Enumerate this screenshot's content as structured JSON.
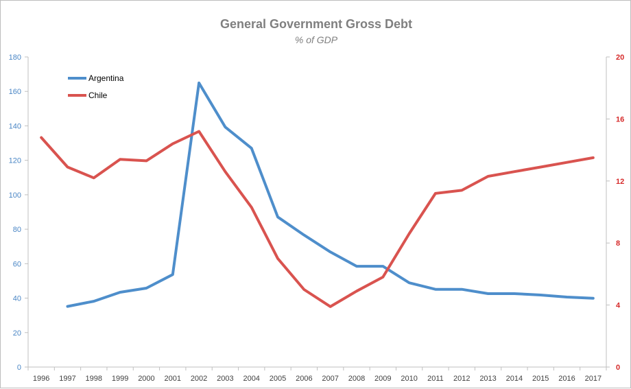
{
  "chart_data": {
    "type": "line",
    "title": "General Government Gross Debt",
    "subtitle": "% of GDP",
    "categories": [
      "1996",
      "1997",
      "1998",
      "1999",
      "2000",
      "2001",
      "2002",
      "2003",
      "2004",
      "2005",
      "2006",
      "2007",
      "2008",
      "2009",
      "2010",
      "2011",
      "2012",
      "2013",
      "2014",
      "2015",
      "2016",
      "2017"
    ],
    "y_left": {
      "ylim": [
        0,
        180
      ],
      "ticks": [
        "0",
        "20",
        "40",
        "60",
        "80",
        "100",
        "120",
        "140",
        "160",
        "180"
      ],
      "color": "#4a86c5"
    },
    "y_right": {
      "ylim": [
        0,
        20
      ],
      "ticks": [
        "0",
        "4",
        "8",
        "12",
        "16",
        "20"
      ],
      "color": "#d62a2a"
    },
    "series": [
      {
        "name": "Argentina",
        "axis": "left",
        "color": "#4e8ecb",
        "values": [
          null,
          35.2,
          38.2,
          43.4,
          45.8,
          53.7,
          164.9,
          139.3,
          127.0,
          87.1,
          76.6,
          66.8,
          58.5,
          58.5,
          48.9,
          45.1,
          45.1,
          42.6,
          42.6,
          41.8,
          40.6,
          39.9
        ]
      },
      {
        "name": "Chile",
        "axis": "right",
        "color": "#d9534f",
        "values": [
          14.8,
          12.9,
          12.2,
          13.4,
          13.3,
          14.4,
          15.2,
          12.6,
          10.3,
          7.0,
          5.0,
          3.9,
          4.9,
          5.8,
          8.6,
          11.2,
          11.4,
          12.3,
          12.6,
          12.9,
          13.2,
          13.5
        ]
      }
    ],
    "legend_position": "top-left",
    "grid": false
  }
}
